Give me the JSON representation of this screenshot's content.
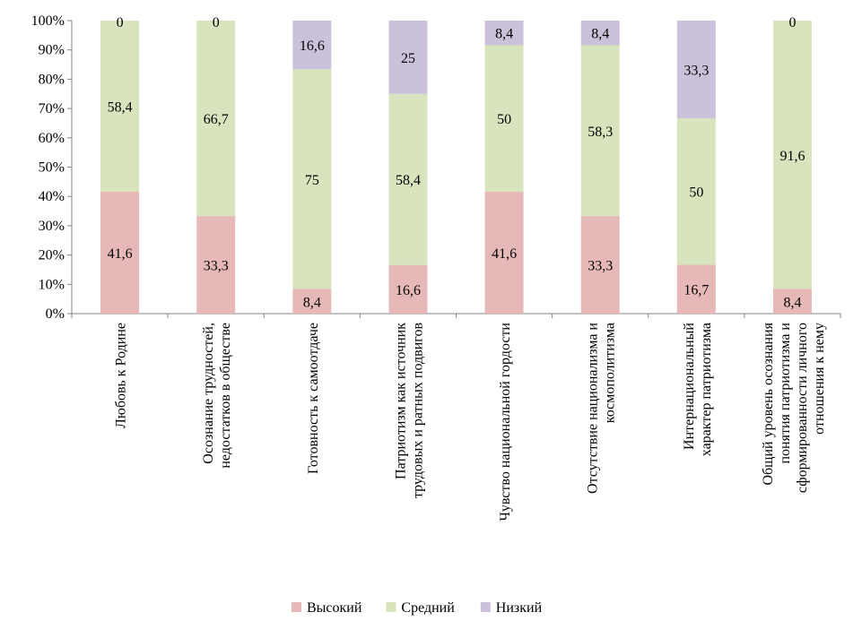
{
  "chart_data": {
    "type": "bar",
    "stacked": "percent",
    "title": "",
    "xlabel": "",
    "ylabel": "",
    "ylim": [
      0,
      100
    ],
    "yticks": [
      "0%",
      "10%",
      "20%",
      "30%",
      "40%",
      "50%",
      "60%",
      "70%",
      "80%",
      "90%",
      "100%"
    ],
    "grid": false,
    "legend_position": "bottom",
    "categories": [
      [
        "Любовь к Родине"
      ],
      [
        "Осознание трудностей,",
        "недостатков в обществе"
      ],
      [
        "Готовность к самоотдаче"
      ],
      [
        "Патриотизм как источник",
        "трудовых и ратных подвигов"
      ],
      [
        "Чувство национальной гордости"
      ],
      [
        "Отсутствие национализма  и",
        "космополитизма"
      ],
      [
        "Интернациональный",
        "характер  патриотизма"
      ],
      [
        "Общий уровень осознания",
        "понятия патриотизма и",
        "сформированности личного",
        "отношения к нему"
      ]
    ],
    "series": [
      {
        "name": "Высокий",
        "color": "#E6B9B8",
        "values": [
          41.6,
          33.3,
          8.4,
          16.6,
          41.6,
          33.3,
          16.7,
          8.4
        ],
        "labels": [
          "41,6",
          "33,3",
          "8,4",
          "16,6",
          "41,6",
          "33,3",
          "16,7",
          "8,4"
        ]
      },
      {
        "name": "Средний",
        "color": "#D7E4BD",
        "values": [
          58.4,
          66.7,
          75,
          58.4,
          50,
          58.3,
          50,
          91.6
        ],
        "labels": [
          "58,4",
          "66,7",
          "75",
          "58,4",
          "50",
          "58,3",
          "50",
          "91,6"
        ]
      },
      {
        "name": "Низкий",
        "color": "#CCC1DA",
        "values": [
          0,
          0,
          16.6,
          25,
          8.4,
          8.4,
          33.3,
          0
        ],
        "labels": [
          "0",
          "0",
          "16,6",
          "25",
          "8,4",
          "8,4",
          "33,3",
          "0"
        ]
      }
    ]
  }
}
